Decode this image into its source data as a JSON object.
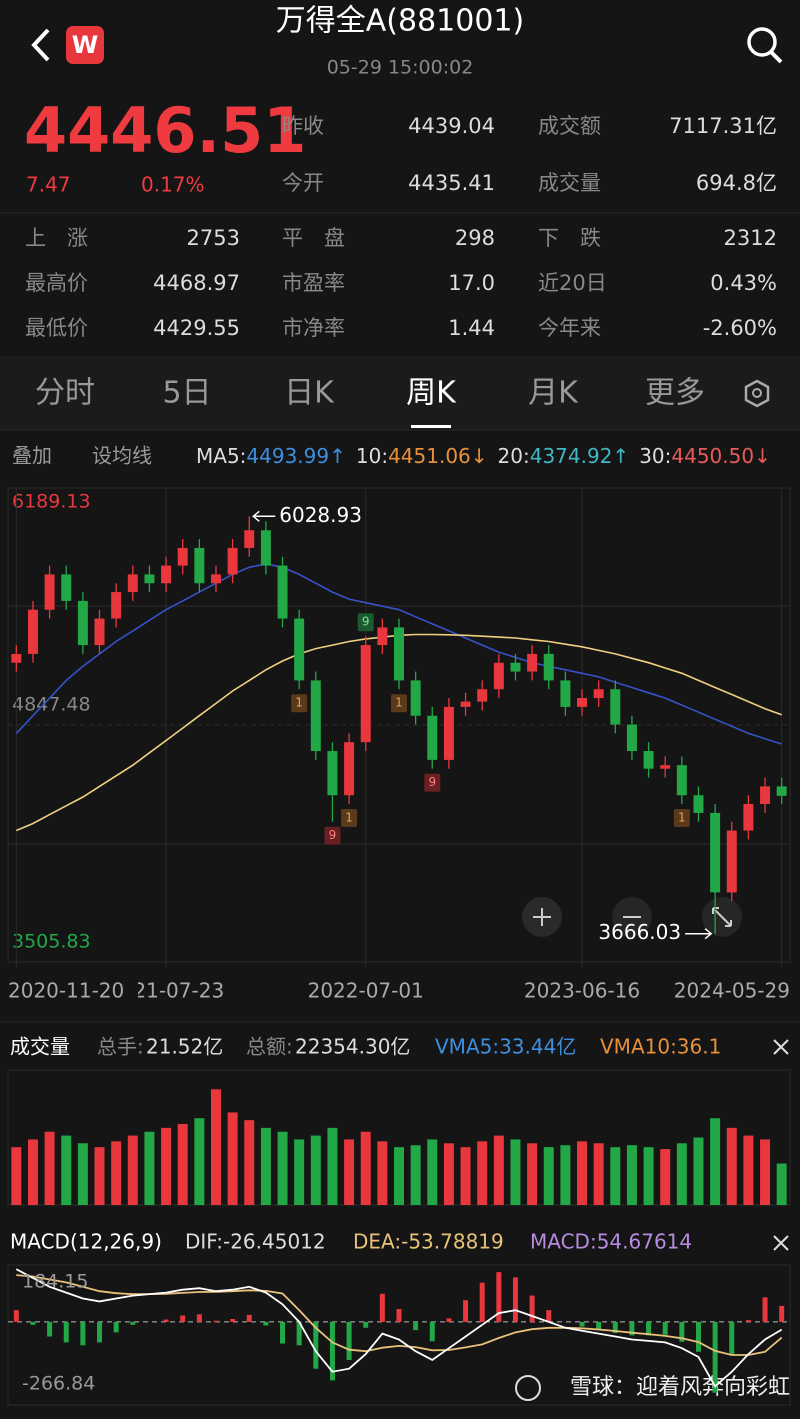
{
  "header": {
    "title": "万得全A(881001)",
    "time": "05-29 15:00:02",
    "logo": "W"
  },
  "quote": {
    "price": "4446.51",
    "change": "7.47",
    "change_pct": "0.17%",
    "stats": [
      [
        "昨收",
        "4439.04",
        "成交额",
        "7117.31亿"
      ],
      [
        "今开",
        "4435.41",
        "成交量",
        "694.8亿"
      ]
    ]
  },
  "market": [
    [
      "上　涨",
      "2753",
      "平　盘",
      "298",
      "下　跌",
      "2312"
    ],
    [
      "最高价",
      "4468.97",
      "市盈率",
      "17.0",
      "近20日",
      "0.43%"
    ],
    [
      "最低价",
      "4429.55",
      "市净率",
      "1.44",
      "今年来",
      "-2.60%"
    ]
  ],
  "tabs": {
    "items": [
      "分时",
      "5日",
      "日K",
      "周K",
      "月K",
      "更多"
    ],
    "active": 3
  },
  "ma_legend": {
    "buttons": [
      "叠加",
      "设均线"
    ],
    "items": [
      {
        "label": "MA5:",
        "value": "4493.99↑",
        "color": "#3d8fe0"
      },
      {
        "label": "10:",
        "value": "4451.06↓",
        "color": "#e8913a"
      },
      {
        "label": "20:",
        "value": "4374.92↑",
        "color": "#3fb8c4"
      },
      {
        "label": "30:",
        "value": "4450.50↓",
        "color": "#e85a5a"
      }
    ]
  },
  "chart_data": [
    {
      "type": "candlestick",
      "up_color": "#e8383d",
      "down_color": "#22a846",
      "categories": [
        "2020-11-20",
        null,
        null,
        null,
        null,
        null,
        null,
        null,
        null,
        "2021-07-23",
        null,
        null,
        null,
        null,
        null,
        null,
        null,
        null,
        null,
        null,
        null,
        "2022-07-01",
        null,
        null,
        null,
        null,
        null,
        null,
        null,
        null,
        null,
        null,
        null,
        null,
        "2023-06-16",
        null,
        null,
        null,
        null,
        null,
        null,
        null,
        null,
        null,
        null,
        null,
        "2024-05-29"
      ],
      "open": [
        5200,
        5250,
        5500,
        5700,
        5550,
        5300,
        5450,
        5600,
        5700,
        5650,
        5750,
        5850,
        5650,
        5700,
        5850,
        5950,
        5750,
        5450,
        5100,
        4700,
        4450,
        4750,
        5300,
        5400,
        5100,
        4900,
        4650,
        4950,
        4980,
        5050,
        5200,
        5150,
        5250,
        5100,
        4950,
        5000,
        5050,
        4850,
        4700,
        4600,
        4620,
        4450,
        4350,
        3900,
        4250,
        4400,
        4500
      ],
      "high": [
        5300,
        5550,
        5750,
        5750,
        5600,
        5500,
        5650,
        5750,
        5750,
        5800,
        5900,
        5900,
        5750,
        5900,
        6028.93,
        6000,
        5800,
        5500,
        5150,
        4750,
        4800,
        5350,
        5450,
        5450,
        5150,
        4950,
        5000,
        5030,
        5100,
        5250,
        5250,
        5300,
        5300,
        5150,
        5050,
        5100,
        5100,
        4900,
        4750,
        4670,
        4670,
        4500,
        4400,
        4300,
        4450,
        4550,
        4550
      ],
      "low": [
        5150,
        5200,
        5450,
        5500,
        5250,
        5250,
        5400,
        5550,
        5600,
        5600,
        5700,
        5600,
        5600,
        5650,
        5800,
        5700,
        5400,
        5050,
        4650,
        4300,
        4400,
        4700,
        5250,
        5050,
        4850,
        4600,
        4600,
        4900,
        4930,
        5000,
        5100,
        5100,
        5050,
        4900,
        4900,
        4950,
        4800,
        4650,
        4550,
        4550,
        4400,
        4300,
        3666.03,
        3850,
        4200,
        4350,
        4400
      ],
      "close": [
        5250,
        5500,
        5700,
        5550,
        5300,
        5450,
        5600,
        5700,
        5650,
        5750,
        5850,
        5650,
        5700,
        5850,
        5950,
        5750,
        5450,
        5100,
        4700,
        4450,
        4750,
        5300,
        5400,
        5100,
        4900,
        4650,
        4950,
        4980,
        5050,
        5200,
        5150,
        5250,
        5100,
        4950,
        5000,
        5050,
        4850,
        4700,
        4600,
        4620,
        4450,
        4350,
        3900,
        4250,
        4400,
        4500,
        4446.51
      ],
      "ma_lines": [
        {
          "color": "#3553c8",
          "values": [
            4800,
            4900,
            5000,
            5100,
            5180,
            5250,
            5320,
            5380,
            5440,
            5500,
            5550,
            5600,
            5650,
            5700,
            5740,
            5760,
            5740,
            5700,
            5650,
            5600,
            5560,
            5540,
            5520,
            5500,
            5460,
            5420,
            5380,
            5340,
            5300,
            5260,
            5230,
            5200,
            5180,
            5160,
            5140,
            5120,
            5090,
            5060,
            5030,
            5000,
            4960,
            4920,
            4880,
            4840,
            4800,
            4770,
            4740
          ]
        },
        {
          "color": "#f0d080",
          "values": [
            4250,
            4290,
            4340,
            4390,
            4440,
            4500,
            4560,
            4620,
            4690,
            4760,
            4830,
            4900,
            4970,
            5040,
            5100,
            5160,
            5210,
            5250,
            5280,
            5300,
            5320,
            5335,
            5345,
            5355,
            5360,
            5360,
            5358,
            5355,
            5350,
            5345,
            5340,
            5330,
            5320,
            5305,
            5290,
            5270,
            5250,
            5225,
            5200,
            5170,
            5140,
            5100,
            5060,
            5020,
            4980,
            4940,
            4905
          ]
        }
      ],
      "td_labels": [
        null,
        null,
        null,
        null,
        null,
        null,
        null,
        null,
        null,
        null,
        null,
        null,
        null,
        null,
        null,
        null,
        null,
        "1",
        null,
        "9",
        "1",
        "9",
        null,
        "1",
        null,
        "9",
        null,
        null,
        null,
        null,
        null,
        null,
        null,
        null,
        null,
        null,
        null,
        null,
        null,
        null,
        "1",
        null,
        null,
        null,
        null,
        null,
        null
      ],
      "high_label": "6028.93",
      "low_label": "3666.03",
      "ylim": [
        3505.83,
        6189.13
      ],
      "yticks": [
        6189.13,
        4847.48,
        3505.83
      ],
      "ytick_colors": [
        "#e8383d",
        "#888888",
        "#22a846"
      ]
    },
    {
      "type": "bar",
      "title": "成交量",
      "header": [
        {
          "text": "总手:",
          "color": "#888888"
        },
        {
          "text": "21.52亿",
          "color": "#dddddd"
        },
        {
          "text": "总额:",
          "color": "#888888"
        },
        {
          "text": "22354.30亿",
          "color": "#dddddd"
        },
        {
          "text": "VMA5:33.44亿",
          "color": "#3d8fe0"
        },
        {
          "text": "VMA10:36.1",
          "color": "#e8913a"
        }
      ],
      "values": [
        30,
        34,
        38,
        36,
        32,
        30,
        33,
        36,
        38,
        40,
        42,
        45,
        60,
        48,
        44,
        40,
        38,
        34,
        36,
        40,
        34,
        38,
        33,
        30,
        31,
        34,
        32,
        30,
        33,
        36,
        34,
        32,
        30,
        31,
        33,
        32,
        30,
        31,
        30,
        29,
        32,
        35,
        45,
        40,
        36,
        34,
        21.52
      ],
      "ylim": [
        0,
        70
      ]
    },
    {
      "type": "macd",
      "title": "MACD(12,26,9)",
      "header": [
        {
          "text": "DIF:-26.45012",
          "color": "#dddddd"
        },
        {
          "text": "DEA:-53.78819",
          "color": "#e8c27a"
        },
        {
          "text": "MACD:54.67614",
          "color": "#b78be0"
        }
      ],
      "dif": [
        180,
        150,
        120,
        100,
        80,
        70,
        80,
        90,
        95,
        100,
        110,
        115,
        105,
        110,
        120,
        100,
        60,
        0,
        -100,
        -170,
        -160,
        -110,
        -40,
        -60,
        -100,
        -130,
        -90,
        -50,
        -10,
        30,
        40,
        20,
        0,
        -20,
        -30,
        -40,
        -50,
        -60,
        -65,
        -70,
        -90,
        -120,
        -220,
        -170,
        -110,
        -60,
        -26.45012
      ],
      "dea": [
        160,
        155,
        145,
        135,
        120,
        105,
        98,
        95,
        95,
        96,
        99,
        102,
        103,
        105,
        108,
        106,
        97,
        40,
        -20,
        -70,
        -95,
        -100,
        -88,
        -82,
        -86,
        -97,
        -96,
        -87,
        -77,
        -55,
        -36,
        -25,
        -20,
        -20,
        -22,
        -26,
        -31,
        -37,
        -42,
        -48,
        -56,
        -69,
        -99,
        -113,
        -113,
        -102,
        -53.78819
      ],
      "macd": [
        40,
        -10,
        -50,
        -70,
        -80,
        -70,
        -36,
        -10,
        0,
        8,
        22,
        26,
        4,
        10,
        24,
        -12,
        -74,
        -80,
        -160,
        -200,
        -130,
        -20,
        96,
        44,
        -28,
        -66,
        12,
        74,
        134,
        170,
        152,
        90,
        40,
        0,
        -16,
        -28,
        -38,
        -46,
        -46,
        -44,
        -68,
        -102,
        -242,
        -114,
        6,
        84,
        54.67614
      ],
      "dif_color": "#ffffff",
      "dea_color": "#e8c27a",
      "up_color": "#e8383d",
      "down_color": "#22a846",
      "ylim": [
        -266.84,
        184.15
      ],
      "yticks": [
        184.15,
        -266.84
      ]
    }
  ],
  "watermark": "雪球：迎着风奔向彩虹"
}
